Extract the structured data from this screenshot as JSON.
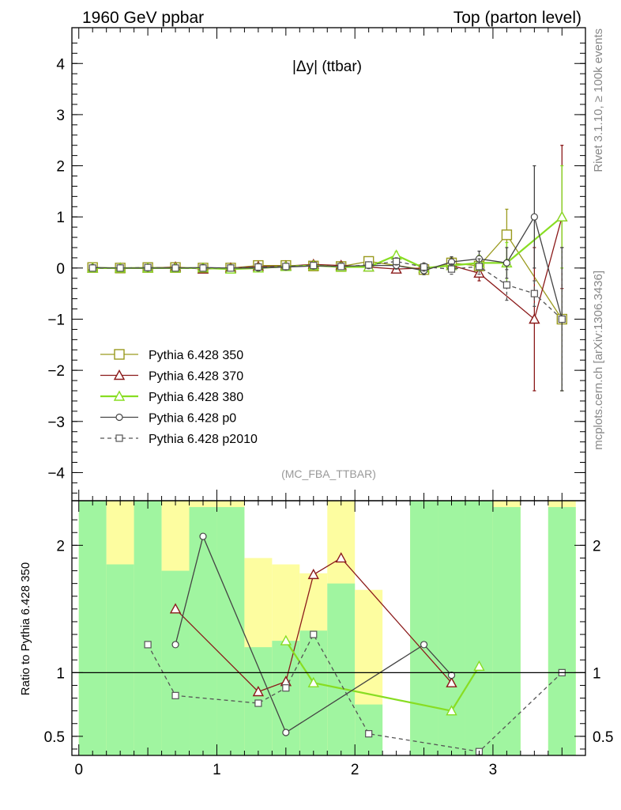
{
  "header": {
    "left": "1960 GeV ppbar",
    "right": "Top (parton level)",
    "side_top": "Rivet 3.1.10, ≥ 100k events",
    "side_bottom": "mcplots.cern.ch [arXiv:1306.3436]"
  },
  "chart_data": [
    {
      "type": "line",
      "title": "|Δy| (ttbar)",
      "analysis_label": "(MC_FBA_TTBAR)",
      "xlabel": "",
      "ylabel": "",
      "xlim": [
        -0.05,
        3.67
      ],
      "ylim": [
        -4.55,
        4.7
      ],
      "yticks": [
        -4,
        -3,
        -2,
        -1,
        0,
        1,
        2,
        3,
        4
      ],
      "ytick_labels": [
        "−4",
        "−3",
        "−2",
        "−1",
        "0",
        "1",
        "2",
        "3",
        "4"
      ],
      "grid": false,
      "legend_position": "lower-left",
      "x": [
        0.1,
        0.3,
        0.5,
        0.7,
        0.9,
        1.1,
        1.3,
        1.5,
        1.7,
        1.9,
        2.1,
        2.3,
        2.5,
        2.7,
        2.9,
        3.1,
        3.3,
        3.5
      ],
      "series": [
        {
          "name": "Pythia 6.428 350",
          "color": "#9a9a1e",
          "marker": "square-open-large",
          "dash": false,
          "x": [
            0.1,
            0.3,
            0.5,
            0.7,
            0.9,
            1.1,
            1.3,
            1.5,
            1.7,
            1.9,
            2.1,
            2.5,
            2.7,
            2.9,
            3.1,
            3.5
          ],
          "values": [
            0.01,
            0.0,
            0.01,
            0.01,
            0.0,
            0.0,
            0.05,
            0.05,
            0.04,
            0.03,
            0.13,
            -0.03,
            0.1,
            0.04,
            0.65,
            -1.0
          ],
          "errors": [
            0.02,
            0.02,
            0.02,
            0.02,
            0.03,
            0.03,
            0.03,
            0.04,
            0.04,
            0.05,
            0.06,
            0.08,
            0.1,
            0.15,
            0.5,
            1.4
          ]
        },
        {
          "name": "Pythia 6.428 370",
          "color": "#8b1a1a",
          "marker": "triangle-open",
          "dash": false,
          "x": [
            0.1,
            0.3,
            0.5,
            0.7,
            0.9,
            1.1,
            1.3,
            1.5,
            1.7,
            1.9,
            2.1,
            2.3,
            2.5,
            2.7,
            2.9,
            3.3,
            3.5
          ],
          "values": [
            0.0,
            0.0,
            0.0,
            0.02,
            -0.02,
            0.0,
            0.03,
            0.04,
            0.07,
            0.05,
            0.02,
            -0.02,
            0.0,
            0.05,
            -0.1,
            -1.0,
            1.0
          ],
          "errors": [
            0.02,
            0.02,
            0.02,
            0.02,
            0.03,
            0.03,
            0.03,
            0.04,
            0.04,
            0.05,
            0.06,
            0.07,
            0.08,
            0.1,
            0.15,
            1.4,
            1.4
          ]
        },
        {
          "name": "Pythia 6.428 380",
          "color": "#88dd22",
          "marker": "triangle-open",
          "dash": false,
          "x": [
            0.1,
            0.3,
            0.5,
            0.7,
            0.9,
            1.1,
            1.3,
            1.5,
            1.7,
            1.9,
            2.1,
            2.3,
            2.5,
            2.7,
            2.9,
            3.1,
            3.5
          ],
          "values": [
            0.0,
            0.0,
            0.0,
            0.0,
            0.0,
            -0.02,
            0.0,
            0.03,
            0.05,
            0.02,
            0.02,
            0.25,
            0.0,
            0.05,
            0.1,
            0.1,
            1.0
          ],
          "errors": [
            0.02,
            0.02,
            0.02,
            0.02,
            0.03,
            0.03,
            0.03,
            0.04,
            0.04,
            0.05,
            0.06,
            0.07,
            0.08,
            0.1,
            0.15,
            0.4,
            1.0
          ]
        },
        {
          "name": "Pythia 6.428 p0",
          "color": "#444444",
          "marker": "circle-open",
          "dash": false,
          "x": [
            0.1,
            0.3,
            0.5,
            0.7,
            0.9,
            1.1,
            1.3,
            1.5,
            1.7,
            1.9,
            2.1,
            2.3,
            2.5,
            2.7,
            2.9,
            3.1,
            3.3,
            3.5
          ],
          "values": [
            0.01,
            0.0,
            0.0,
            0.0,
            0.01,
            0.0,
            0.0,
            0.02,
            0.04,
            0.03,
            0.05,
            0.05,
            -0.05,
            0.12,
            0.18,
            0.1,
            1.0,
            -1.0
          ],
          "errors": [
            0.02,
            0.02,
            0.02,
            0.02,
            0.03,
            0.03,
            0.03,
            0.04,
            0.04,
            0.05,
            0.06,
            0.07,
            0.08,
            0.1,
            0.15,
            0.3,
            1.0,
            1.4
          ]
        },
        {
          "name": "Pythia 6.428 p2010",
          "color": "#555555",
          "marker": "square-open-small",
          "dash": true,
          "x": [
            0.1,
            0.3,
            0.5,
            0.7,
            0.9,
            1.1,
            1.3,
            1.5,
            1.7,
            1.9,
            2.1,
            2.3,
            2.5,
            2.7,
            2.9,
            3.1,
            3.3,
            3.5
          ],
          "values": [
            0.0,
            0.0,
            0.01,
            0.0,
            0.0,
            0.0,
            0.02,
            0.03,
            0.05,
            0.03,
            0.06,
            0.13,
            0.02,
            -0.02,
            0.03,
            -0.33,
            -0.5,
            -1.0
          ],
          "errors": [
            0.02,
            0.02,
            0.02,
            0.02,
            0.03,
            0.03,
            0.03,
            0.04,
            0.04,
            0.05,
            0.06,
            0.07,
            0.08,
            0.1,
            0.15,
            0.3,
            0.25,
            1.4
          ]
        }
      ]
    },
    {
      "type": "line",
      "title": "",
      "xlabel": "",
      "ylabel": "Ratio to Pythia 6.428 350",
      "xlim": [
        -0.05,
        3.67
      ],
      "ylim": [
        0.35,
        2.35
      ],
      "yticks": [
        0.5,
        1,
        2
      ],
      "ytick_labels": [
        "0.5",
        "1",
        "2"
      ],
      "xticks": [
        0,
        1,
        2,
        3
      ],
      "xtick_labels": [
        "0",
        "1",
        "2",
        "3"
      ],
      "reference_line": 1,
      "bands": {
        "x_edges": [
          0.0,
          0.2,
          0.4,
          0.6,
          0.8,
          1.0,
          1.2,
          1.4,
          1.6,
          1.8,
          2.0,
          2.2,
          2.4,
          2.6,
          2.8,
          3.0,
          3.2,
          3.4,
          3.6
        ],
        "inner_low": [
          0.35,
          0.35,
          0.35,
          0.35,
          0.35,
          0.35,
          0.35,
          0.35,
          0.35,
          0.35,
          0.35,
          null,
          0.35,
          0.35,
          0.35,
          0.35,
          null,
          0.35
        ],
        "inner_high": [
          2.35,
          2.35,
          2.35,
          2.35,
          2.35,
          2.3,
          1.2,
          1.25,
          1.33,
          1.7,
          0.75,
          null,
          2.35,
          2.35,
          2.35,
          2.35,
          null,
          2.35
        ],
        "outer_low": [
          0.35,
          0.35,
          0.35,
          0.35,
          0.35,
          0.35,
          0.35,
          0.35,
          0.35,
          0.35,
          0.4,
          null,
          0.35,
          0.35,
          0.35,
          0.35,
          null,
          0.35
        ],
        "outer_high": [
          2.35,
          2.35,
          2.35,
          2.35,
          2.35,
          2.35,
          1.9,
          1.85,
          1.78,
          2.35,
          1.65,
          null,
          2.35,
          2.35,
          2.35,
          2.35,
          null,
          2.35
        ],
        "outer_top_cap": [
          2.35,
          1.85,
          2.35,
          1.8,
          2.3,
          2.3,
          null,
          null,
          null,
          null,
          null,
          null,
          null,
          null,
          null,
          2.3,
          null,
          2.3
        ],
        "inner_color": "#a0f5a0",
        "outer_color": "#fdfda0"
      },
      "series": [
        {
          "name": "Pythia 6.428 370",
          "color": "#8b1a1a",
          "marker": "triangle-open",
          "dash": false,
          "x": [
            0.7,
            1.3,
            1.5,
            1.7,
            1.9,
            2.7
          ],
          "values": [
            1.5,
            0.85,
            0.93,
            1.77,
            1.9,
            0.92
          ]
        },
        {
          "name": "Pythia 6.428 380",
          "color": "#88dd22",
          "marker": "triangle-open",
          "dash": false,
          "x": [
            1.5,
            1.7,
            2.7,
            2.9
          ],
          "values": [
            1.25,
            0.92,
            0.7,
            1.05
          ]
        },
        {
          "name": "Pythia 6.428 p0",
          "color": "#444444",
          "marker": "circle-open",
          "dash": false,
          "x": [
            0.7,
            0.9,
            1.5,
            2.5,
            2.7
          ],
          "values": [
            1.22,
            2.07,
            0.53,
            1.22,
            0.98
          ]
        },
        {
          "name": "Pythia 6.428 p2010",
          "color": "#555555",
          "marker": "square-open-small",
          "dash": true,
          "x": [
            0.5,
            0.7,
            1.3,
            1.5,
            1.7,
            2.1,
            2.9,
            3.5
          ],
          "values": [
            1.22,
            0.82,
            0.76,
            0.88,
            1.3,
            0.52,
            0.38,
            1.0
          ]
        }
      ]
    }
  ]
}
